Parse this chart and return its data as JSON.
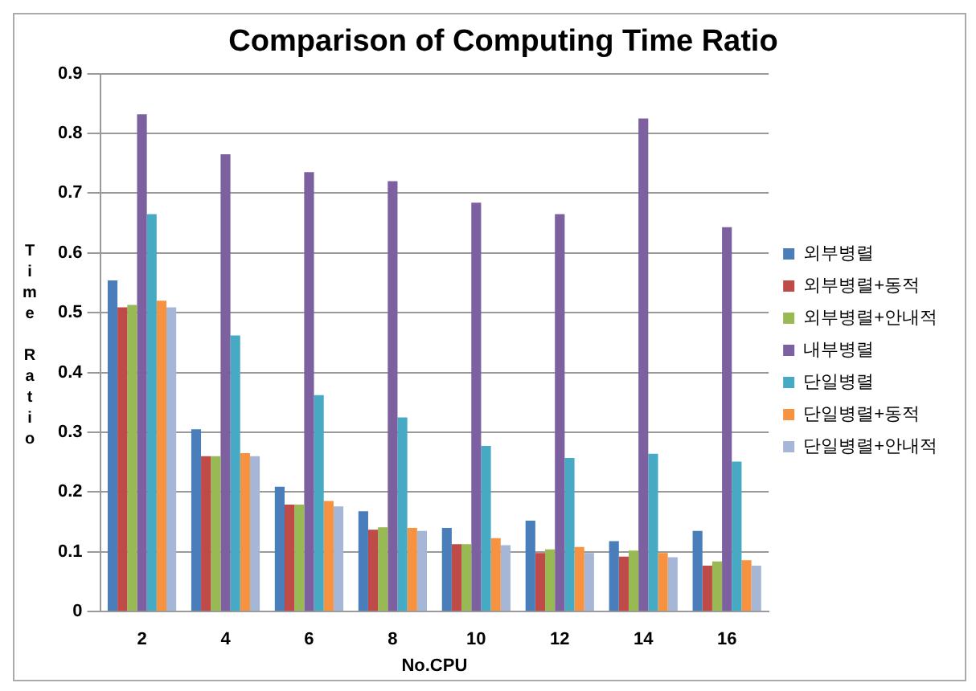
{
  "chart_data": {
    "type": "bar",
    "title": "Comparison of Computing Time Ratio",
    "xlabel": "No.CPU",
    "ylabel": "Time Ratio",
    "categories": [
      "2",
      "4",
      "6",
      "8",
      "10",
      "12",
      "14",
      "16"
    ],
    "series": [
      {
        "name": "외부병렬",
        "color": "#4a7ebb",
        "values": [
          0.554,
          0.305,
          0.209,
          0.168,
          0.14,
          0.152,
          0.118,
          0.135
        ]
      },
      {
        "name": "외부병렬+동적",
        "color": "#be4b48",
        "values": [
          0.509,
          0.26,
          0.179,
          0.137,
          0.113,
          0.098,
          0.092,
          0.077
        ]
      },
      {
        "name": "외부병렬+안내적",
        "color": "#98b954",
        "values": [
          0.513,
          0.26,
          0.179,
          0.141,
          0.113,
          0.104,
          0.102,
          0.084
        ]
      },
      {
        "name": "내부병렬",
        "color": "#7d60a0",
        "values": [
          0.832,
          0.765,
          0.735,
          0.72,
          0.684,
          0.665,
          0.825,
          0.643
        ]
      },
      {
        "name": "단일병렬",
        "color": "#46aac5",
        "values": [
          0.665,
          0.462,
          0.362,
          0.325,
          0.277,
          0.257,
          0.264,
          0.251
        ]
      },
      {
        "name": "단일병렬+동적",
        "color": "#f69240",
        "values": [
          0.52,
          0.265,
          0.185,
          0.14,
          0.123,
          0.108,
          0.098,
          0.086
        ]
      },
      {
        "name": "단일병렬+안내적",
        "color": "#a5b6d7",
        "values": [
          0.509,
          0.26,
          0.176,
          0.135,
          0.111,
          0.098,
          0.091,
          0.077
        ]
      }
    ],
    "ylim": [
      0,
      0.9
    ],
    "yticks": [
      0,
      0.1,
      0.2,
      0.3,
      0.4,
      0.5,
      0.6,
      0.7,
      0.8,
      0.9
    ],
    "grid": "y",
    "legend": "right"
  }
}
